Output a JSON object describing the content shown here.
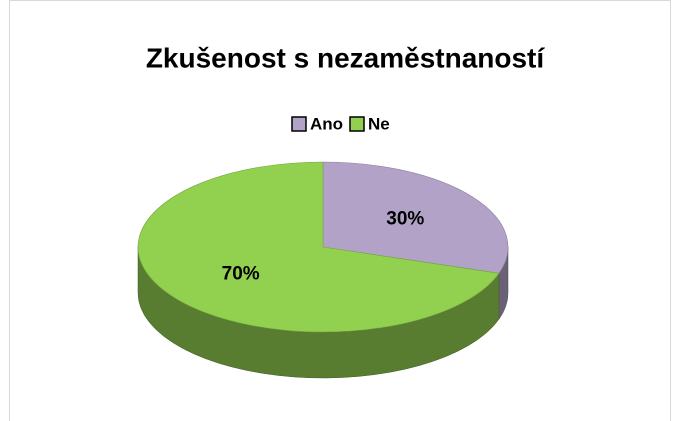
{
  "chart_data": {
    "type": "pie",
    "title": "Zkušenost s nezaměstnaností",
    "categories": [
      "Ano",
      "Ne"
    ],
    "values": [
      30,
      70
    ],
    "value_labels": [
      "30%",
      "70%"
    ],
    "colors": [
      "#b3a2c7",
      "#92d050"
    ],
    "legend": "top"
  }
}
